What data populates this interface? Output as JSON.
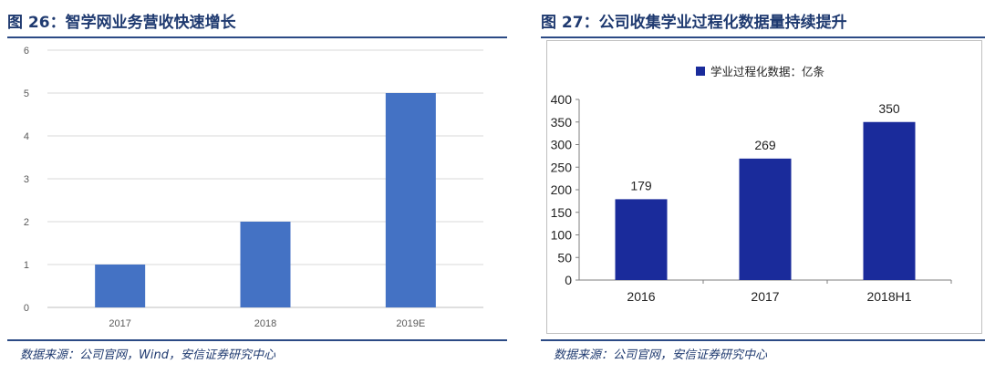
{
  "left": {
    "fig_title": "图 26：智学网业务营收快速增长",
    "source": "数据来源：公司官网，Wind，安信证券研究中心"
  },
  "right": {
    "fig_title": "图 27：公司收集学业过程化数据量持续提升",
    "source": "数据来源：公司官网，安信证券研究中心"
  },
  "chart_data": [
    {
      "type": "bar",
      "title": "智学网业务营收快速增长",
      "categories": [
        "2017",
        "2018",
        "2019E"
      ],
      "values": [
        1,
        2,
        5
      ],
      "ylim": [
        0,
        6
      ],
      "yticks": [
        0,
        1,
        2,
        3,
        4,
        5,
        6
      ],
      "grid": true,
      "color": "#4472c4"
    },
    {
      "type": "bar",
      "title": "公司收集学业过程化数据量持续提升",
      "categories": [
        "2016",
        "2017",
        "2018H1"
      ],
      "series": [
        {
          "name": "学业过程化数据：亿条",
          "values": [
            179,
            269,
            350
          ]
        }
      ],
      "ylim": [
        0,
        400
      ],
      "yticks": [
        0,
        50,
        100,
        150,
        200,
        250,
        300,
        350,
        400
      ],
      "grid": false,
      "legend": "top",
      "data_labels": [
        "179",
        "269",
        "350"
      ],
      "color": "#1a2b9b"
    }
  ]
}
